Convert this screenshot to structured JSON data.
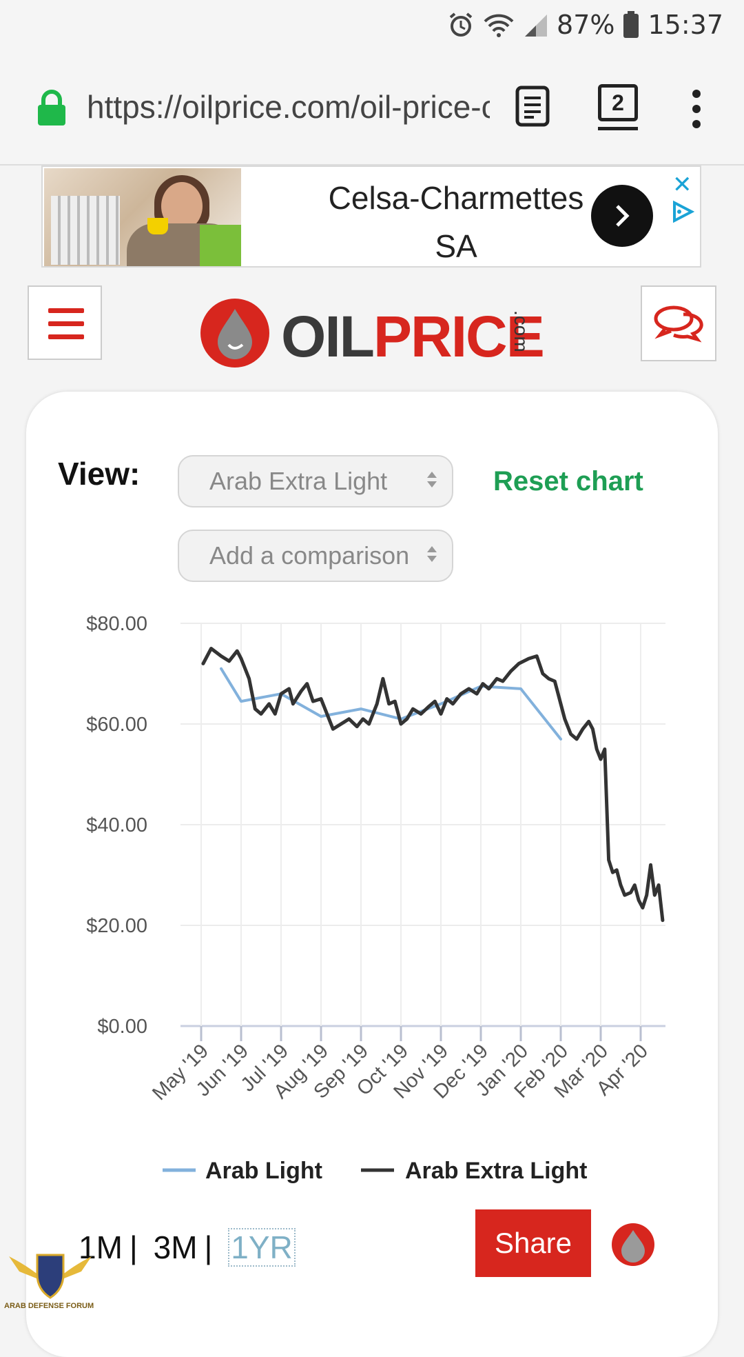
{
  "status_bar": {
    "battery": "87%",
    "time": "15:37"
  },
  "browser": {
    "url": "https://oilprice.com/oil-price-charts",
    "tab_count": "2"
  },
  "ad": {
    "title_line1": "Celsa-Charmettes",
    "title_line2": "SA"
  },
  "header": {
    "logo_oil": "OIL",
    "logo_price": "PRICE",
    "logo_com": ".com"
  },
  "controls": {
    "view_label": "View:",
    "select_value": "Arab Extra Light",
    "comparison_placeholder": "Add a comparison",
    "reset_label": "Reset chart"
  },
  "chart_data": {
    "type": "line",
    "y_ticks": [
      "$80.00",
      "$60.00",
      "$40.00",
      "$20.00",
      "$0.00"
    ],
    "ylim": [
      0,
      80
    ],
    "x_ticks": [
      "May '19",
      "Jun '19",
      "Jul '19",
      "Aug '19",
      "Sep '19",
      "Oct '19",
      "Nov '19",
      "Dec '19",
      "Jan '20",
      "Feb '20",
      "Mar '20",
      "Apr '20"
    ],
    "grid": true,
    "legend_position": "bottom",
    "series": [
      {
        "name": "Arab Light",
        "color": "#82b1dc",
        "points": [
          [
            0.5,
            71
          ],
          [
            1.0,
            64.5
          ],
          [
            2.0,
            66
          ],
          [
            3.0,
            61.5
          ],
          [
            4.0,
            63
          ],
          [
            5.0,
            61
          ],
          [
            6.0,
            64
          ],
          [
            7.0,
            67.5
          ],
          [
            8.0,
            67
          ],
          [
            9.0,
            57
          ]
        ]
      },
      {
        "name": "Arab Extra Light",
        "color": "#333333",
        "points": [
          [
            0.05,
            72
          ],
          [
            0.25,
            75
          ],
          [
            0.5,
            73.5
          ],
          [
            0.7,
            72.5
          ],
          [
            0.9,
            74.5
          ],
          [
            1.0,
            73
          ],
          [
            1.2,
            69
          ],
          [
            1.35,
            63
          ],
          [
            1.5,
            62
          ],
          [
            1.7,
            64
          ],
          [
            1.85,
            62
          ],
          [
            2.0,
            66
          ],
          [
            2.2,
            67
          ],
          [
            2.3,
            64
          ],
          [
            2.5,
            66.5
          ],
          [
            2.65,
            68
          ],
          [
            2.8,
            64.5
          ],
          [
            3.0,
            65
          ],
          [
            3.15,
            62
          ],
          [
            3.3,
            59
          ],
          [
            3.5,
            60
          ],
          [
            3.7,
            61
          ],
          [
            3.9,
            59.5
          ],
          [
            4.05,
            61
          ],
          [
            4.2,
            60
          ],
          [
            4.4,
            64
          ],
          [
            4.55,
            69
          ],
          [
            4.7,
            64
          ],
          [
            4.85,
            64.5
          ],
          [
            5.0,
            60
          ],
          [
            5.15,
            61
          ],
          [
            5.3,
            63
          ],
          [
            5.5,
            62
          ],
          [
            5.7,
            63.5
          ],
          [
            5.85,
            64.5
          ],
          [
            6.0,
            62
          ],
          [
            6.15,
            65
          ],
          [
            6.3,
            64
          ],
          [
            6.5,
            66
          ],
          [
            6.7,
            67
          ],
          [
            6.9,
            66
          ],
          [
            7.05,
            68
          ],
          [
            7.2,
            67
          ],
          [
            7.4,
            69
          ],
          [
            7.55,
            68.5
          ],
          [
            7.75,
            70.5
          ],
          [
            7.95,
            72
          ],
          [
            8.2,
            73
          ],
          [
            8.4,
            73.5
          ],
          [
            8.55,
            70
          ],
          [
            8.7,
            69
          ],
          [
            8.85,
            68.5
          ],
          [
            9.0,
            64
          ],
          [
            9.1,
            61
          ],
          [
            9.25,
            58
          ],
          [
            9.4,
            57
          ],
          [
            9.55,
            59
          ],
          [
            9.7,
            60.5
          ],
          [
            9.8,
            59
          ],
          [
            9.9,
            55
          ],
          [
            10.0,
            53
          ],
          [
            10.1,
            55
          ],
          [
            10.2,
            33
          ],
          [
            10.3,
            30.5
          ],
          [
            10.4,
            31
          ],
          [
            10.5,
            28
          ],
          [
            10.6,
            26
          ],
          [
            10.75,
            26.5
          ],
          [
            10.85,
            28
          ],
          [
            10.95,
            25
          ],
          [
            11.05,
            23.5
          ],
          [
            11.15,
            26
          ],
          [
            11.25,
            32
          ],
          [
            11.35,
            26
          ],
          [
            11.45,
            28
          ],
          [
            11.55,
            21
          ]
        ]
      }
    ]
  },
  "range_buttons": [
    "1M",
    "3M",
    "1YR"
  ],
  "share_label": "Share",
  "watermark_text": "ARAB DEFENSE FORUM"
}
